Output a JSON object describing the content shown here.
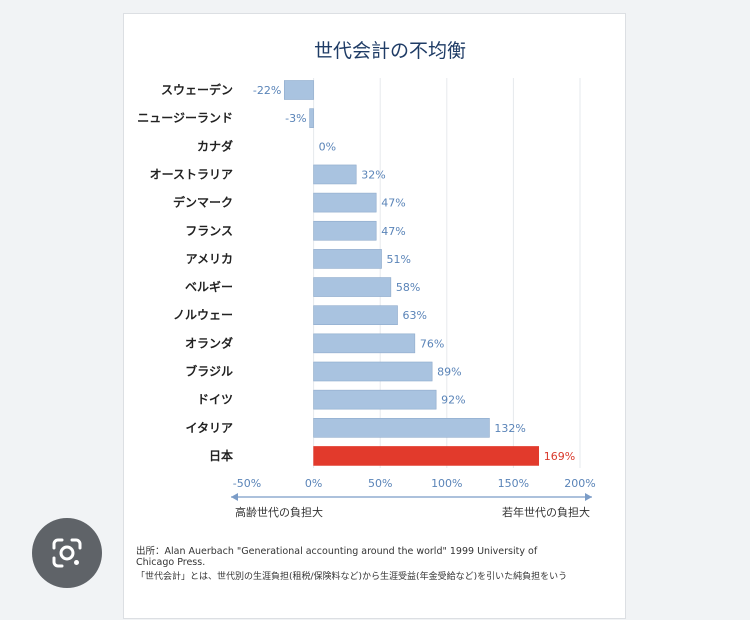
{
  "chart_data": {
    "type": "bar",
    "orientation": "horizontal",
    "title": "世代会計の不均衡",
    "categories": [
      "スウェーデン",
      "ニュージーランド",
      "カナダ",
      "オーストラリア",
      "デンマーク",
      "フランス",
      "アメリカ",
      "ベルギー",
      "ノルウェー",
      "オランダ",
      "ブラジル",
      "ドイツ",
      "イタリア",
      "日本"
    ],
    "values": [
      -22,
      -3,
      0,
      32,
      47,
      47,
      51,
      58,
      63,
      76,
      89,
      92,
      132,
      169
    ],
    "value_labels": [
      "-22%",
      "-3%",
      "0%",
      "32%",
      "47%",
      "47%",
      "51%",
      "58%",
      "63%",
      "76%",
      "89%",
      "92%",
      "132%",
      "169%"
    ],
    "highlight": "日本",
    "xlim": [
      -50,
      200
    ],
    "xticks": [
      -50,
      0,
      50,
      100,
      150,
      200
    ],
    "xtick_labels": [
      "-50%",
      "0%",
      "50%",
      "100%",
      "150%",
      "200%"
    ],
    "grid": true,
    "arrow_left_label": "高齢世代の負担大",
    "arrow_right_label": "若年世代の負担大",
    "colors": {
      "bar": "#a9c3e0",
      "bar_edge": "#8eaacb",
      "highlight": "#e23a2c",
      "label": "#5a84b8",
      "highlight_label": "#d9392b",
      "grid": "#e6e9ed",
      "axis_arrow": "#7b9cc7"
    }
  },
  "source": {
    "line1": "出所：Alan Auerbach \"Generational accounting around the world\" 1999 University of",
    "line2": "Chicago Press.",
    "line3": "「世代会計」とは、世代別の生涯負担(租税/保険料など)から生涯受益(年金受給など)を引いた純負担をいう"
  },
  "lens": {
    "icon": "google-lens-icon"
  }
}
